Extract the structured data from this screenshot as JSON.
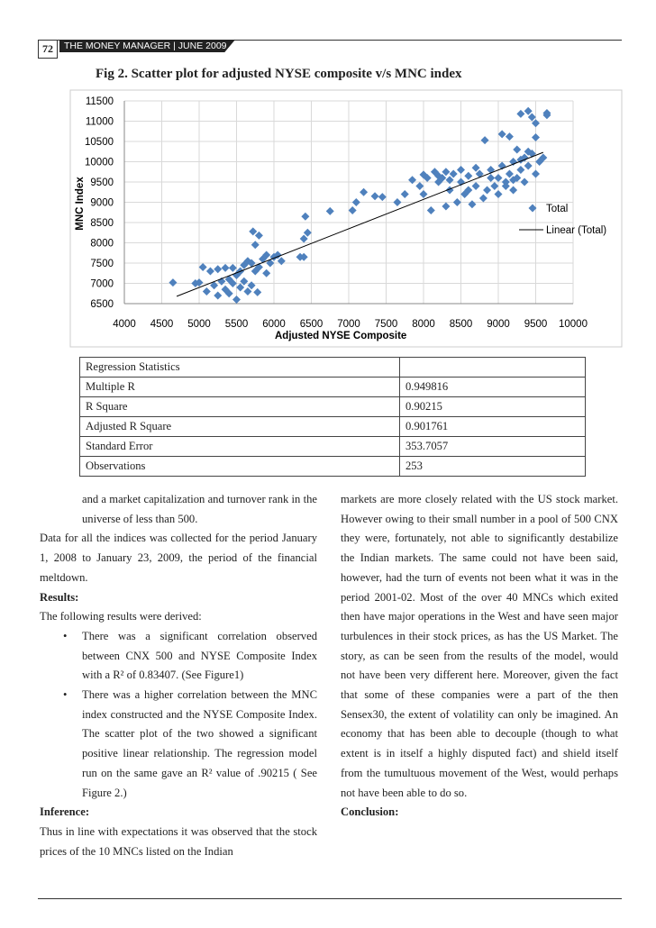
{
  "header": {
    "page_number": "72",
    "publication": "THE MONEY MANAGER | JUNE 2009"
  },
  "chart_data": {
    "type": "scatter",
    "title": "Fig 2. Scatter plot for adjusted NYSE composite v/s MNC index",
    "xlabel": "Adjusted NYSE Composite",
    "ylabel": "MNC Index",
    "xlim": [
      4000,
      10000
    ],
    "ylim": [
      6500,
      11500
    ],
    "xticks": [
      4000,
      4500,
      5000,
      5500,
      6000,
      6500,
      7000,
      7500,
      8000,
      8500,
      9000,
      9500,
      10000
    ],
    "yticks": [
      6500,
      7000,
      7500,
      8000,
      8500,
      9000,
      9500,
      10000,
      10500,
      11000,
      11500
    ],
    "grid": true,
    "legend": "right",
    "series": [
      {
        "name": "Total",
        "color": "#4f81bd",
        "x": [
          4650,
          4950,
          5000,
          5050,
          5100,
          5150,
          5200,
          5250,
          5250,
          5300,
          5350,
          5350,
          5400,
          5400,
          5450,
          5450,
          5500,
          5500,
          5550,
          5550,
          5600,
          5600,
          5650,
          5650,
          5700,
          5700,
          5720,
          5750,
          5750,
          5780,
          5800,
          5800,
          5850,
          5900,
          5900,
          5950,
          6000,
          6050,
          6100,
          6350,
          6400,
          6400,
          6450,
          6420,
          6750,
          7050,
          7100,
          7200,
          7350,
          7450,
          7650,
          7750,
          7850,
          7950,
          8000,
          8000,
          8100,
          8150,
          8200,
          8250,
          8300,
          8300,
          8350,
          8400,
          8450,
          8500,
          8500,
          8550,
          8600,
          8650,
          8700,
          8750,
          8800,
          8820,
          8850,
          8900,
          8950,
          9000,
          9000,
          9050,
          9050,
          9100,
          9150,
          9150,
          9200,
          9200,
          9250,
          9250,
          9300,
          9300,
          9350,
          9350,
          9400,
          9400,
          9450,
          9450,
          9500,
          9500,
          9500,
          9550,
          9600,
          9650,
          9650,
          8200,
          8350,
          8600,
          8900,
          9100,
          9300,
          8050,
          8700,
          9200,
          9400
        ],
        "values": [
          7020,
          7000,
          7020,
          7400,
          6800,
          7300,
          6950,
          6700,
          7350,
          7050,
          6850,
          7380,
          7100,
          6750,
          7000,
          7380,
          6600,
          7200,
          6900,
          7300,
          7050,
          7450,
          6800,
          7550,
          6950,
          7500,
          8280,
          7300,
          7950,
          6780,
          8180,
          7400,
          7600,
          7250,
          7700,
          7500,
          7650,
          7700,
          7550,
          7650,
          7650,
          8100,
          8250,
          8650,
          8780,
          8800,
          9000,
          9250,
          9150,
          9130,
          9000,
          9200,
          9550,
          9400,
          9200,
          9680,
          8800,
          9750,
          9500,
          9600,
          8900,
          9750,
          9300,
          9700,
          9000,
          9500,
          9800,
          9200,
          9650,
          8950,
          9400,
          9700,
          9100,
          10530,
          9300,
          9800,
          9400,
          9600,
          9200,
          9900,
          10680,
          9500,
          9700,
          10620,
          9300,
          10000,
          9600,
          10300,
          9800,
          11180,
          9500,
          10100,
          9900,
          11250,
          10200,
          11100,
          9700,
          10600,
          10950,
          10000,
          10100,
          11200,
          11150,
          9650,
          9550,
          9300,
          9600,
          9400,
          10050,
          9600,
          9850,
          9550,
          10250
        ]
      },
      {
        "name": "Linear (Total)",
        "type": "line",
        "color": "#000000",
        "x": [
          4700,
          9600
        ],
        "values": [
          6680,
          10230
        ]
      }
    ]
  },
  "table": {
    "header": "Regression Statistics",
    "rows": [
      [
        "Multiple R",
        "0.949816"
      ],
      [
        "R Square",
        "0.90215"
      ],
      [
        "Adjusted R Square",
        "0.901761"
      ],
      [
        "Standard Error",
        "353.7057"
      ],
      [
        "Observations",
        "253"
      ]
    ]
  },
  "left_column": {
    "p1": "and a market capitalization and turnover rank in the universe of less than 500.",
    "p2": "Data for all the indices was collected for the period January 1, 2008 to January 23, 2009, the period of the financial meltdown.",
    "h1": "Results:",
    "p3": "The following results were derived:",
    "bullets": [
      "There was a significant correlation observed between CNX 500 and NYSE Composite Index with a R² of 0.83407. (See Figure1)",
      "There was a higher correlation between the MNC index constructed and the NYSE Composite Index. The scatter plot of the two showed a significant positive linear relationship. The regression model run on the same gave an R² value of .90215 ( See Figure 2.)"
    ],
    "h2": "Inference:",
    "p4": "Thus in line with expectations it was observed that the stock prices of the 10 MNCs listed on the Indian"
  },
  "right_column": {
    "p1": "markets are more closely related with the US stock market. However owing to their small number in a pool of 500 CNX they were, fortunately, not able to significantly destabilize the Indian markets. The same could not have been said, however, had the turn of events not been what it was in the period 2001-02. Most of the over 40 MNCs which exited then have major operations in the West and have seen major turbulences in their stock prices, as has the US Market. The story, as can be seen from the results of the model, would not have been very different here. Moreover, given the fact that some of these companies were a part of the then Sensex30, the extent of volatility can only be imagined. An economy that has been able to decouple (though to what extent is in itself a highly disputed fact) and shield itself from the tumultuous movement of the West, would perhaps not have been able to do so.",
    "h1": "Conclusion:"
  }
}
